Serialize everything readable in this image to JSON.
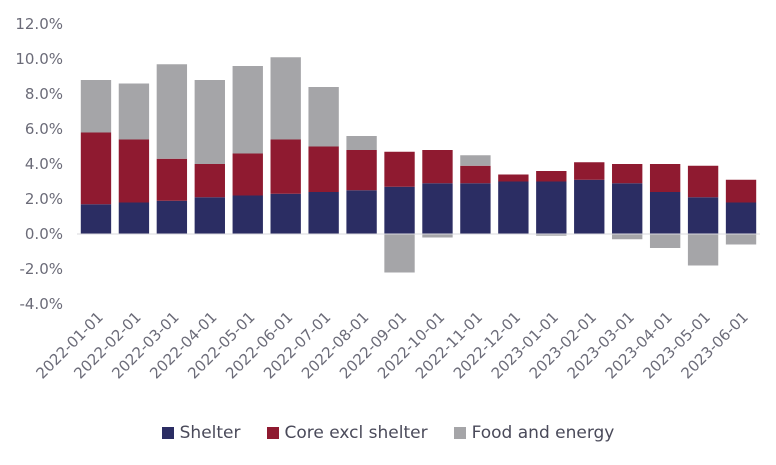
{
  "chart_data": {
    "type": "bar",
    "stacked": true,
    "categories": [
      "2022-01-01",
      "2022-02-01",
      "2022-03-01",
      "2022-04-01",
      "2022-05-01",
      "2022-06-01",
      "2022-07-01",
      "2022-08-01",
      "2022-09-01",
      "2022-10-01",
      "2022-11-01",
      "2022-12-01",
      "2023-01-01",
      "2023-02-01",
      "2023-03-01",
      "2023-04-01",
      "2023-05-01",
      "2023-06-01"
    ],
    "series": [
      {
        "name": "Shelter",
        "color": "#2b2d63",
        "values": [
          1.7,
          1.8,
          1.9,
          2.1,
          2.2,
          2.3,
          2.4,
          2.5,
          2.7,
          2.9,
          2.9,
          3.0,
          3.0,
          3.1,
          2.9,
          2.4,
          2.1,
          1.8
        ]
      },
      {
        "name": "Core excl shelter",
        "color": "#8f1a30",
        "values": [
          4.1,
          3.6,
          2.4,
          1.9,
          2.4,
          3.1,
          2.6,
          2.3,
          2.0,
          1.9,
          1.0,
          0.4,
          0.6,
          1.0,
          1.1,
          1.6,
          1.8,
          1.3
        ]
      },
      {
        "name": "Food and energy",
        "color": "#a5a5a8",
        "values": [
          3.0,
          3.2,
          5.4,
          4.8,
          5.0,
          4.7,
          3.4,
          0.8,
          -2.2,
          -0.2,
          0.6,
          0.0,
          -0.1,
          0.0,
          -0.3,
          -0.8,
          -1.8,
          -0.6
        ]
      }
    ],
    "y_ticks": [
      "12.0%",
      "10.0%",
      "8.0%",
      "6.0%",
      "4.0%",
      "2.0%",
      "0.0%",
      "-2.0%",
      "-4.0%"
    ],
    "ylim": [
      -4,
      12
    ],
    "xlabel": "",
    "ylabel": "",
    "grid": false,
    "legend_position": "bottom"
  }
}
